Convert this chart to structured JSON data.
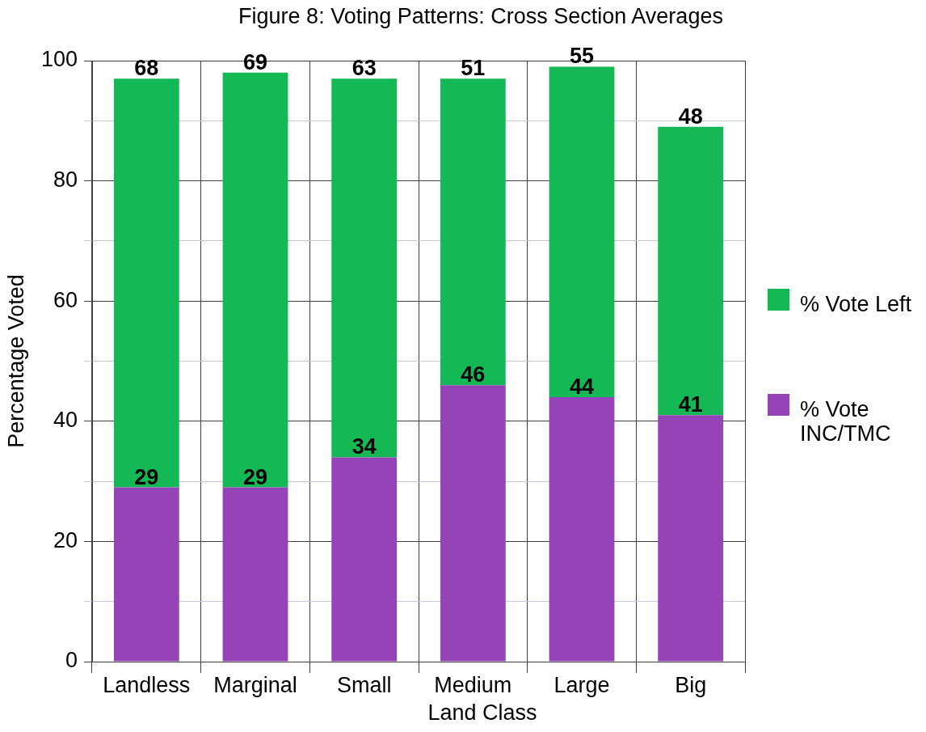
{
  "chart_data": {
    "type": "bar",
    "title": "Figure 8: Voting Patterns: Cross Section Averages",
    "xlabel": "Land Class",
    "ylabel": "Percentage Voted",
    "categories": [
      "Landless",
      "Marginal",
      "Small",
      "Medium",
      "Large",
      "Big"
    ],
    "series": [
      {
        "name": "% Vote INC/TMC",
        "color": "#9544b8",
        "values": [
          29,
          29,
          34,
          46,
          44,
          41
        ]
      },
      {
        "name": "% Vote Left",
        "color": "#14b955",
        "values": [
          68,
          69,
          63,
          51,
          55,
          48
        ]
      }
    ],
    "stacked": true,
    "ylim": [
      0,
      100
    ],
    "yticks": [
      0,
      {
        "value": 10,
        "label": null
      },
      20,
      {
        "value": 30,
        "label": null
      },
      40,
      {
        "value": 50,
        "label": null
      },
      60,
      {
        "value": 70,
        "label": null
      },
      80,
      {
        "value": 90,
        "label": null
      },
      100
    ],
    "grid": true,
    "legend": "right",
    "data_labels": true
  }
}
